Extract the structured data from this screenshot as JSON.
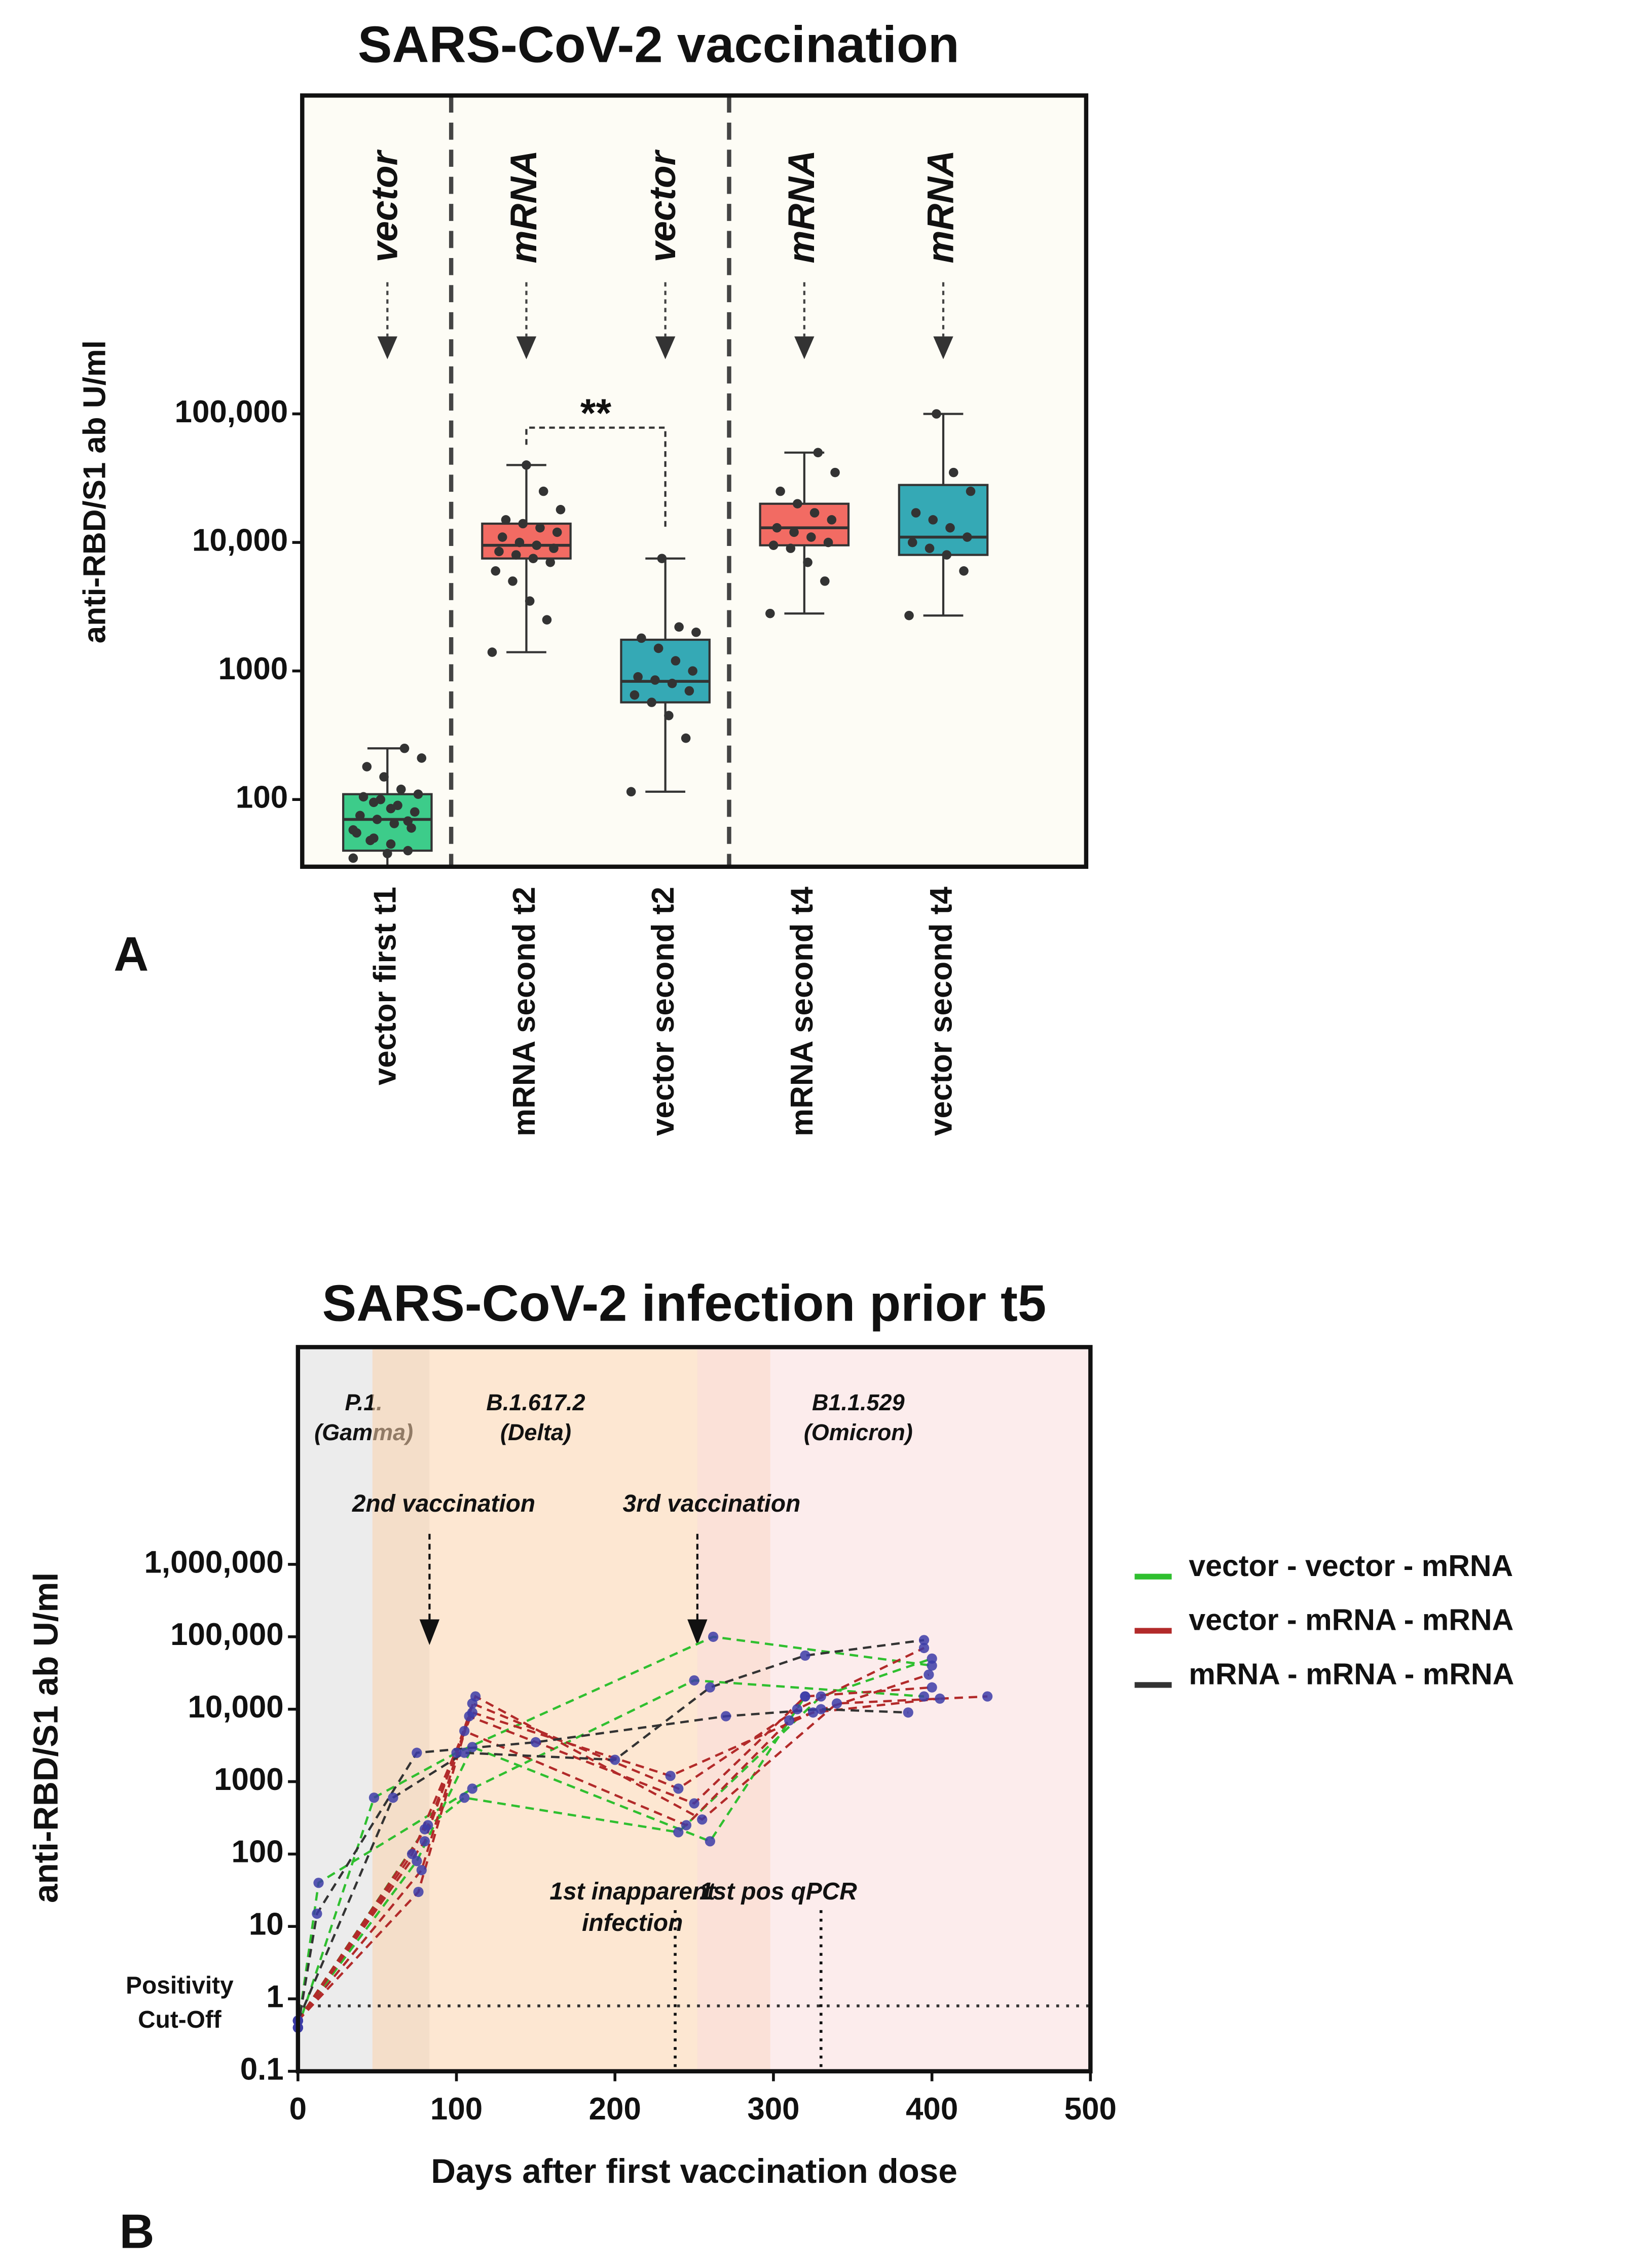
{
  "chart_data": [
    {
      "type": "box",
      "title": "SARS-CoV-2 vaccination",
      "y_label": "anti-RBD/S1 ab U/ml",
      "panel_label": "A",
      "categories": [
        "vector first t1",
        "mRNA second t2",
        "vector second t2",
        "mRNA second t4",
        "vector second t4"
      ],
      "vaccine_labels": [
        "vector",
        "mRNA",
        "vector",
        "mRNA",
        "mRNA"
      ],
      "yscale": "log",
      "ylim": [
        30,
        30000000
      ],
      "yticks": [
        100,
        1000,
        {
          "value": 10000,
          "label": "10,000"
        },
        {
          "value": 100000,
          "label": "100,000"
        }
      ],
      "background": "#fdfcf5",
      "boxes": [
        {
          "min": 30,
          "q1": 40,
          "median": 70,
          "q3": 110,
          "max": 250,
          "color": "#3dcc8a",
          "points": [
            35,
            40,
            45,
            50,
            55,
            60,
            65,
            70,
            75,
            80,
            90,
            100,
            105,
            110,
            120,
            150,
            180,
            210,
            250,
            38,
            48,
            58,
            68,
            85,
            95
          ]
        },
        {
          "min": 1400,
          "q1": 7500,
          "median": 9500,
          "q3": 14000,
          "max": 40000,
          "color": "#f26b63",
          "points": [
            1400,
            2500,
            3500,
            5000,
            6000,
            7000,
            7500,
            8000,
            8500,
            9000,
            9500,
            10000,
            11000,
            12000,
            13000,
            14000,
            15000,
            18000,
            25000,
            40000
          ]
        },
        {
          "min": 115,
          "q1": 570,
          "median": 830,
          "q3": 1750,
          "max": 7500,
          "color": "#35a9b5",
          "points": [
            115,
            300,
            450,
            570,
            650,
            700,
            800,
            850,
            900,
            1000,
            1200,
            1500,
            1800,
            2000,
            2200,
            7500
          ]
        },
        {
          "min": 2800,
          "q1": 9500,
          "median": 13000,
          "q3": 20000,
          "max": 50000,
          "color": "#f26b63",
          "points": [
            2800,
            5000,
            7000,
            9000,
            9500,
            10000,
            11000,
            12000,
            13000,
            15000,
            17000,
            20000,
            25000,
            35000,
            50000
          ]
        },
        {
          "min": 2700,
          "q1": 8000,
          "median": 11000,
          "q3": 28000,
          "max": 100000,
          "color": "#35a9b5",
          "points": [
            2700,
            6000,
            8000,
            9000,
            10000,
            11000,
            13000,
            15000,
            17000,
            25000,
            35000,
            100000
          ]
        }
      ],
      "significance": [
        {
          "text": "**",
          "from": 1,
          "to": 2
        }
      ]
    },
    {
      "type": "line",
      "title": "SARS-CoV-2 infection prior t5",
      "x_label": "Days after first vaccination dose",
      "y_label": "anti-RBD/S1 ab U/ml",
      "panel_label": "B",
      "xlim": [
        0,
        500
      ],
      "xticks": [
        0,
        100,
        200,
        300,
        400,
        500
      ],
      "yscale": "log",
      "ylim": [
        0.1,
        1000000000
      ],
      "yticks": [
        0.1,
        1,
        10,
        100,
        1000,
        {
          "value": 10000,
          "label": "10,000"
        },
        {
          "value": 100000,
          "label": "100,000"
        },
        {
          "value": 1000000,
          "label": "1,000,000"
        }
      ],
      "periods": [
        {
          "label": [
            "P.1.",
            "(Gamma)"
          ],
          "start": 0,
          "end": 83,
          "color": "#dcdcdc"
        },
        {
          "label": [
            "B.1.617.2",
            "(Delta)"
          ],
          "start": 47,
          "end": 298,
          "color": "#fbd3ad"
        },
        {
          "label": [
            "B1.1.529",
            "(Omicron)"
          ],
          "start": 252,
          "end": 500,
          "color": "#f9dcdc"
        }
      ],
      "events": [
        {
          "label": [
            "2nd vaccination"
          ],
          "x": 83,
          "kind": "arrow"
        },
        {
          "label": [
            "3rd vaccination"
          ],
          "x": 252,
          "kind": "arrow"
        },
        {
          "label": [
            "1st inapparent",
            "infection"
          ],
          "x": 238,
          "kind": "line"
        },
        {
          "label": [
            "1st pos qPCR"
          ],
          "x": 330,
          "kind": "line"
        }
      ],
      "cutoff": {
        "label": [
          "Positivity",
          "Cut-Off"
        ],
        "value": 0.8
      },
      "marker_color": "#3c3ca8",
      "legend": "right",
      "series": [
        {
          "name": "vector - vector - mRNA",
          "color": "#2fbf2f",
          "lines": [
            {
              "x": [
                0,
                48,
                100,
                262,
                400
              ],
              "values": [
                0.4,
                600,
                2500,
                100000,
                40000
              ]
            },
            {
              "x": [
                0,
                80,
                105,
                240,
                330,
                400
              ],
              "values": [
                0.5,
                220,
                600,
                200,
                15000,
                50000
              ]
            },
            {
              "x": [
                0,
                75,
                110,
                260,
                320
              ],
              "values": [
                0.5,
                80,
                3000,
                150,
                15000
              ]
            },
            {
              "x": [
                0,
                13,
                110,
                250,
                395
              ],
              "values": [
                0.4,
                40,
                800,
                25000,
                15000
              ]
            }
          ]
        },
        {
          "name": "vector - mRNA - mRNA",
          "color": "#b22a2a",
          "lines": [
            {
              "x": [
                0,
                78,
                110,
                240,
                315,
                395
              ],
              "values": [
                0.5,
                60,
                12000,
                800,
                10000,
                70000
              ]
            },
            {
              "x": [
                0,
                76,
                108,
                250,
                320,
                400
              ],
              "values": [
                0.5,
                30,
                8000,
                500,
                15000,
                20000
              ]
            },
            {
              "x": [
                0,
                80,
                112,
                255,
                340,
                435
              ],
              "values": [
                0.5,
                150,
                15000,
                300,
                12000,
                15000
              ]
            },
            {
              "x": [
                0,
                72,
                105,
                245,
                310,
                398
              ],
              "values": [
                0.5,
                100,
                5000,
                250,
                7000,
                30000
              ]
            },
            {
              "x": [
                0,
                82,
                110,
                235,
                325,
                405
              ],
              "values": [
                0.5,
                250,
                9000,
                1200,
                9000,
                14000
              ]
            }
          ]
        },
        {
          "name": "mRNA - mRNA - mRNA",
          "color": "#333333",
          "lines": [
            {
              "x": [
                0,
                12,
                75,
                150,
                270,
                330,
                385
              ],
              "values": [
                0.4,
                15,
                2500,
                3500,
                8000,
                10000,
                9000
              ]
            },
            {
              "x": [
                0,
                60,
                105,
                200,
                260,
                320,
                395
              ],
              "values": [
                0.5,
                600,
                2500,
                2000,
                20000,
                55000,
                90000
              ]
            }
          ]
        }
      ]
    }
  ]
}
